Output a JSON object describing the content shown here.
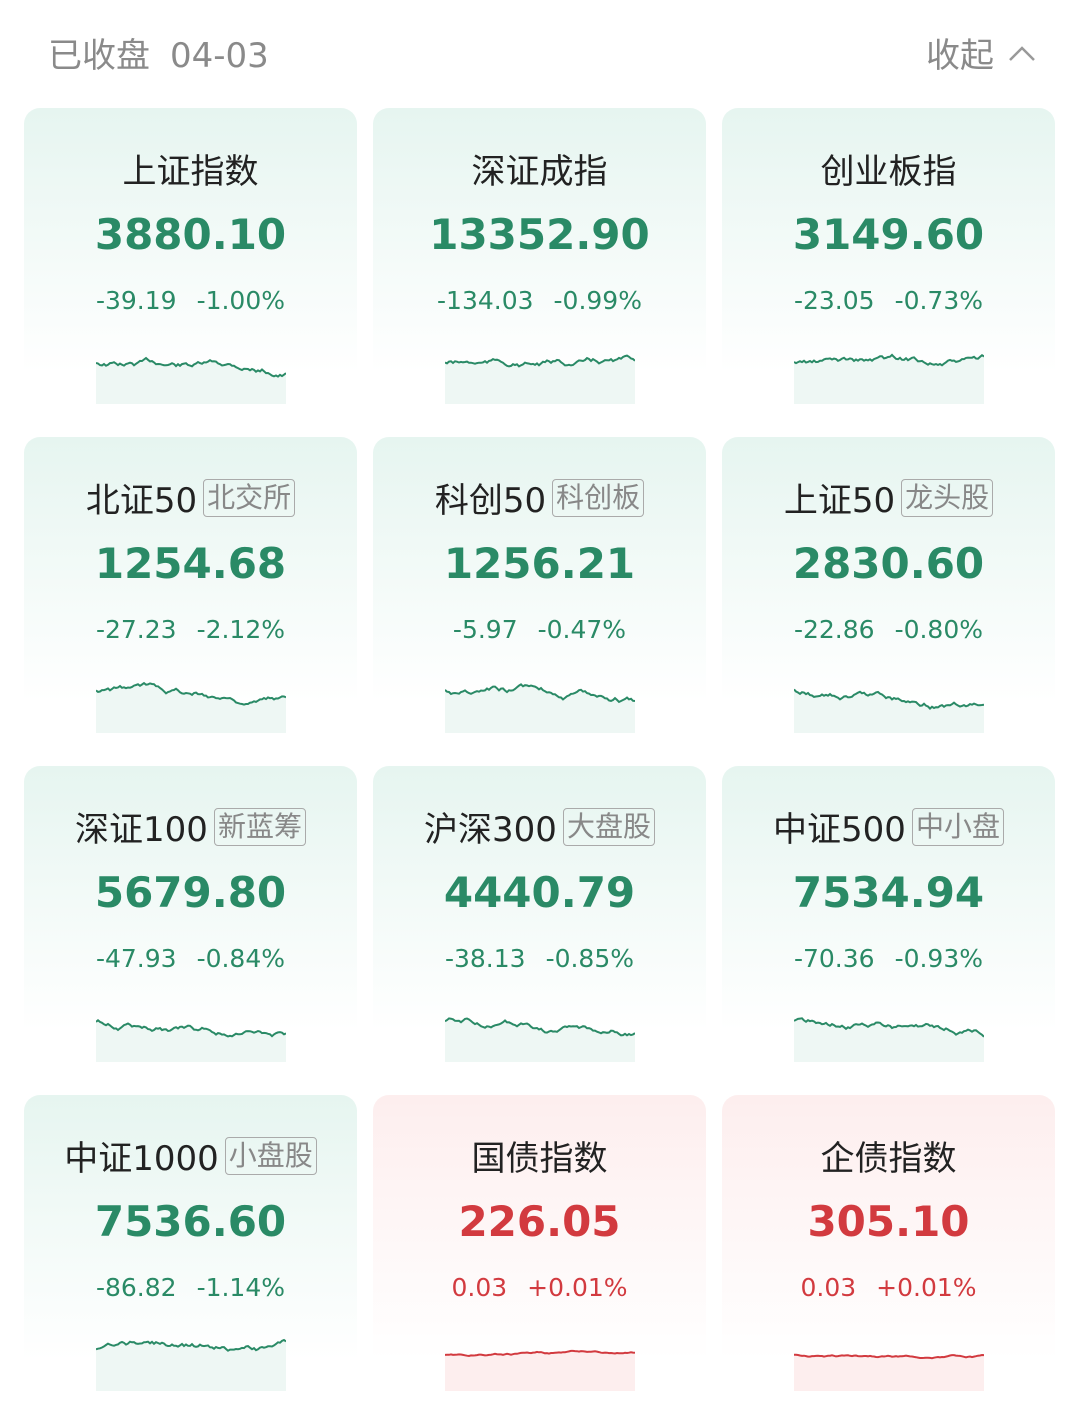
{
  "header": {
    "status": "已收盘",
    "date": "04-03",
    "collapse": "收起"
  },
  "cards": [
    {
      "name": "上证指数",
      "value": "3880.10",
      "change": "-39.19",
      "percent": "-1.00%",
      "color": "#2a8a66"
    },
    {
      "name": "深证成指",
      "value": "13352.90",
      "change": "-134.03",
      "percent": "-0.99%",
      "color": "#2a8a66"
    },
    {
      "name": "创业板指",
      "value": "3149.60",
      "change": "-23.05",
      "percent": "-0.73%",
      "color": "#2a8a66"
    },
    {
      "name": "北证50",
      "tag": "北交所",
      "value": "1254.68",
      "change": "-27.23",
      "percent": "-2.12%",
      "color": "#2a8a66"
    },
    {
      "name": "科创50",
      "tag": "科创板",
      "value": "1256.21",
      "change": "-5.97",
      "percent": "-0.47%",
      "color": "#2a8a66"
    },
    {
      "name": "上证50",
      "tag": "龙头股",
      "value": "2830.60",
      "change": "-22.86",
      "percent": "-0.80%",
      "color": "#2a8a66"
    },
    {
      "name": "深证100",
      "tag": "新蓝筹",
      "value": "5679.80",
      "change": "-47.93",
      "percent": "-0.84%",
      "color": "#2a8a66"
    },
    {
      "name": "沪深300",
      "tag": "大盘股",
      "value": "4440.79",
      "change": "-38.13",
      "percent": "-0.85%",
      "color": "#2a8a66"
    },
    {
      "name": "中证500",
      "tag": "中小盘",
      "value": "7534.94",
      "change": "-70.36",
      "percent": "-0.93%",
      "color": "#2a8a66"
    },
    {
      "name": "中证1000",
      "tag": "小盘股",
      "value": "7536.60",
      "change": "-86.82",
      "percent": "-1.14%",
      "color": "#2a8a66"
    },
    {
      "name": "国债指数",
      "value": "226.05",
      "change": "0.03",
      "percent": "+0.01%",
      "color": "#d23a3f"
    },
    {
      "name": "企债指数",
      "value": "305.10",
      "change": "0.03",
      "percent": "+0.01%",
      "color": "#d23a3f"
    }
  ]
}
